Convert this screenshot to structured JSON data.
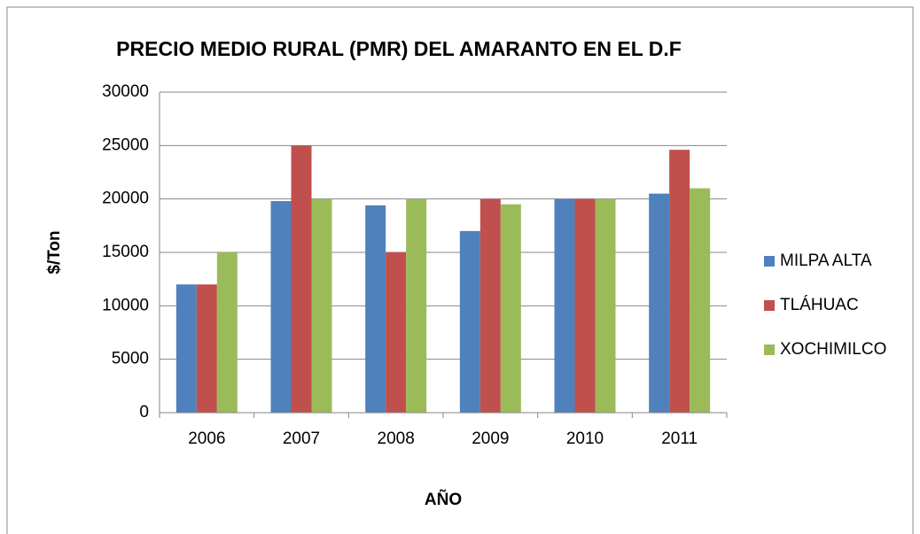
{
  "chart_data": {
    "type": "bar",
    "title": "PRECIO MEDIO RURAL (PMR) DEL AMARANTO EN EL D.F",
    "x_label": "AÑO",
    "y_label": "$/Ton",
    "categories": [
      "2006",
      "2007",
      "2008",
      "2009",
      "2010",
      "2011"
    ],
    "series": [
      {
        "name": "MILPA ALTA",
        "color": "#4f81bd",
        "values": [
          12000,
          19800,
          19400,
          17000,
          20000,
          20500
        ]
      },
      {
        "name": "TLÁHUAC",
        "color": "#c0504d",
        "values": [
          12000,
          25000,
          15000,
          20000,
          20000,
          24600
        ]
      },
      {
        "name": "XOCHIMILCO",
        "color": "#9bbb59",
        "values": [
          15000,
          20000,
          20000,
          19500,
          20000,
          21000
        ]
      }
    ],
    "ylim": [
      0,
      30000
    ],
    "yticks": [
      0,
      5000,
      10000,
      15000,
      20000,
      25000,
      30000
    ],
    "grid": true,
    "legend": "right"
  }
}
